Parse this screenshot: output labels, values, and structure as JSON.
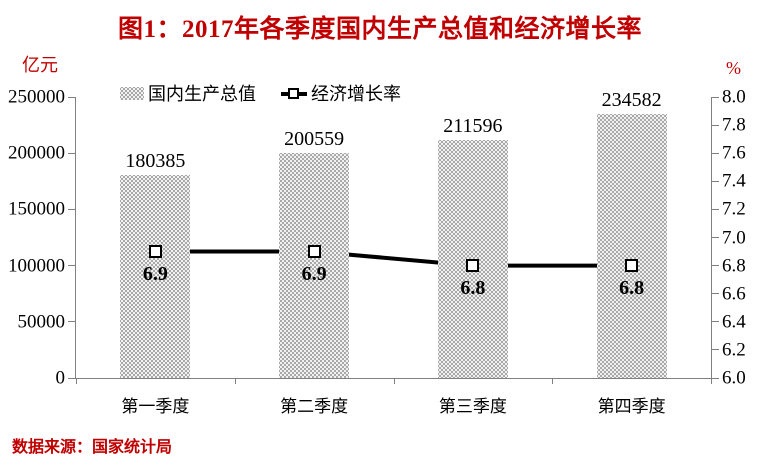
{
  "title": "图1：2017年各季度国内生产总值和经济增长率",
  "unit_left": "亿元",
  "unit_right": "%",
  "source": "数据来源：国家统计局",
  "legend": {
    "bar_label": "国内生产总值",
    "line_label": "经济增长率"
  },
  "colors": {
    "accent_red": "#c00000",
    "bar_gray": "#a9a9a9",
    "axis_gray": "#808080",
    "line_black": "#000000",
    "marker_fill": "#ffffff"
  },
  "chart_data": {
    "type": "bar+line",
    "title": "图1：2017年各季度国内生产总值和经济增长率",
    "categories": [
      "第一季度",
      "第二季度",
      "第三季度",
      "第四季度"
    ],
    "series": [
      {
        "name": "国内生产总值",
        "type": "bar",
        "axis": "left",
        "unit": "亿元",
        "values": [
          180385,
          200559,
          211596,
          234582
        ]
      },
      {
        "name": "经济增长率",
        "type": "line",
        "axis": "right",
        "unit": "%",
        "values": [
          6.9,
          6.9,
          6.8,
          6.8
        ]
      }
    ],
    "left_axis": {
      "label": "亿元",
      "min": 0,
      "max": 250000,
      "step": 50000,
      "ticks": [
        "0",
        "50000",
        "100000",
        "150000",
        "200000",
        "250000"
      ]
    },
    "right_axis": {
      "label": "%",
      "min": 6.0,
      "max": 8.0,
      "step": 0.2,
      "ticks": [
        "6.0",
        "6.2",
        "6.4",
        "6.6",
        "6.8",
        "7.0",
        "7.2",
        "7.4",
        "7.6",
        "7.8",
        "8.0"
      ]
    },
    "grid": false,
    "legend_position": "top",
    "source_note": "数据来源：国家统计局"
  }
}
